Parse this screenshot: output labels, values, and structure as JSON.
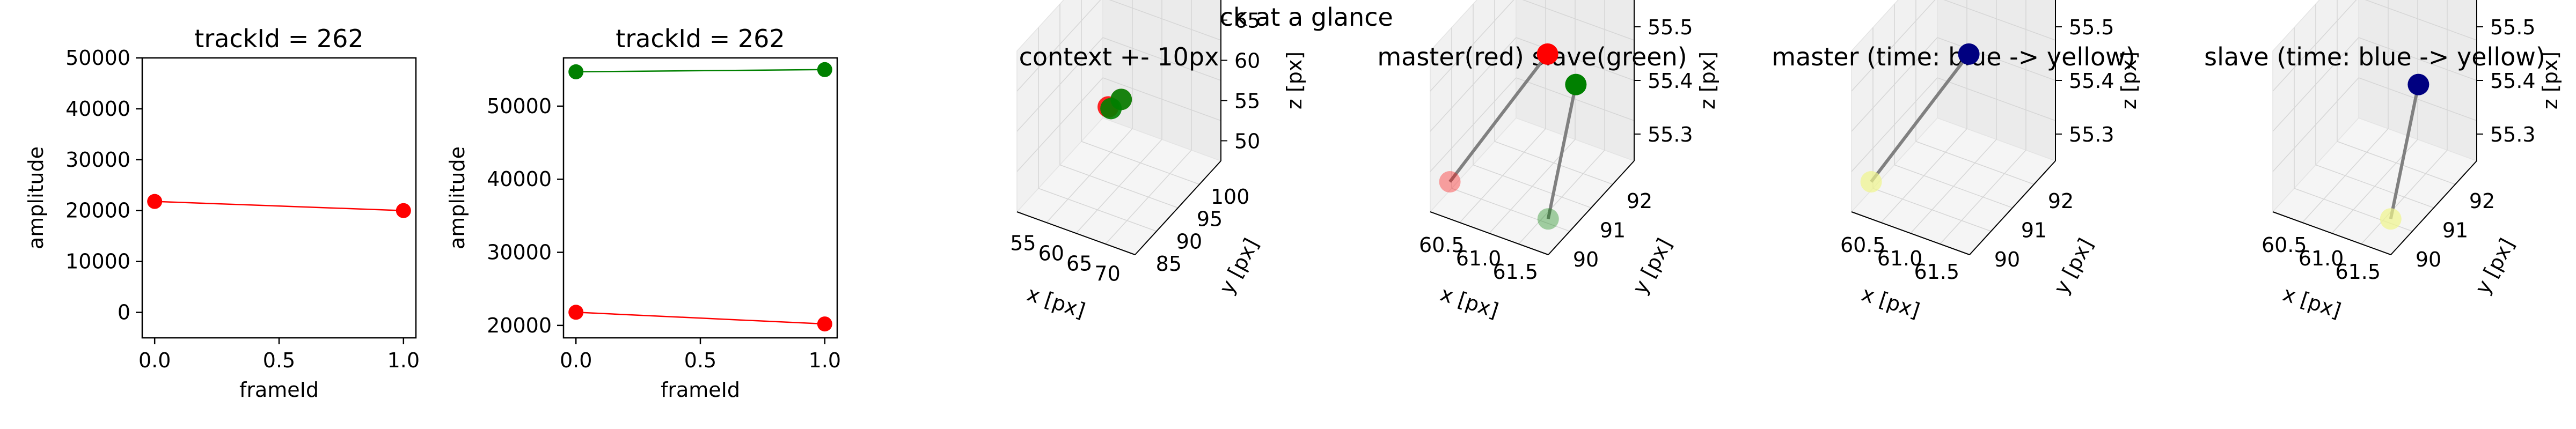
{
  "suptitle": "Track at a glance",
  "colors": {
    "master": "#ff0000",
    "slave": "#008000",
    "connector": "#808080",
    "time_start": "#000080",
    "time_end": "#f0f58c"
  },
  "chart_data": [
    {
      "type": "line",
      "title": "trackId = 262",
      "xlabel": "frameId",
      "ylabel": "amplitude",
      "xlim": [
        -0.05,
        1.05
      ],
      "ylim": [
        -5000,
        50000
      ],
      "xticks": [
        0.0,
        0.5,
        1.0
      ],
      "xtick_labels": [
        "0.0",
        "0.5",
        "1.0"
      ],
      "yticks": [
        0,
        10000,
        20000,
        30000,
        40000,
        50000
      ],
      "ytick_labels": [
        "0",
        "10000",
        "20000",
        "30000",
        "40000",
        "50000"
      ],
      "series": [
        {
          "x": [
            0,
            1
          ],
          "y": [
            21800,
            20000
          ],
          "color": "#ff0000"
        }
      ]
    },
    {
      "type": "line",
      "title": "trackId = 262",
      "xlabel": "frameId",
      "ylabel": "amplitude",
      "xlim": [
        -0.05,
        1.05
      ],
      "ylim": [
        18300,
        56600
      ],
      "xticks": [
        0.0,
        0.5,
        1.0
      ],
      "xtick_labels": [
        "0.0",
        "0.5",
        "1.0"
      ],
      "yticks": [
        20000,
        30000,
        40000,
        50000
      ],
      "ytick_labels": [
        "20000",
        "30000",
        "40000",
        "50000"
      ],
      "series": [
        {
          "x": [
            0,
            1
          ],
          "y": [
            21800,
            20200
          ],
          "color": "#ff0000"
        },
        {
          "x": [
            0,
            1
          ],
          "y": [
            54700,
            55000
          ],
          "color": "#008000"
        }
      ]
    },
    {
      "type": "scatter",
      "title": "context +- 10px",
      "xlabel": "x [px]",
      "ylabel": "y [px]",
      "zlabel": "z [px]",
      "xlim": [
        50.5,
        72
      ],
      "ylim": [
        81,
        104
      ],
      "zlim": [
        42,
        66
      ],
      "xtick_labels": [
        "55",
        "60",
        "65",
        "70"
      ],
      "ytick_labels": [
        "85",
        "90",
        "95",
        "100"
      ],
      "ztick_labels": [
        "50",
        "55",
        "60",
        "65"
      ],
      "points": [
        {
          "x": 60.5,
          "y": 92,
          "z": 55.5,
          "color": "#ff0000",
          "alpha": 0.35
        },
        {
          "x": 61.5,
          "y": 90,
          "z": 55.3,
          "color": "#ff0000",
          "alpha": 0.85
        },
        {
          "x": 60.5,
          "y": 92,
          "z": 55.5,
          "color": "#008000",
          "alpha": 0.9
        },
        {
          "x": 61.0,
          "y": 90,
          "z": 55.2,
          "color": "#008000",
          "alpha": 0.9
        }
      ]
    },
    {
      "type": "scatter",
      "title": "master(red) slave(green)",
      "xlabel": "x [px]",
      "ylabel": "y [px]",
      "zlabel": "z [px]",
      "xlim": [
        60.4,
        61.8
      ],
      "ylim": [
        89.7,
        92.8
      ],
      "zlim": [
        55.18,
        55.52
      ],
      "xtick_labels": [
        "60.5",
        "61.0",
        "61.5"
      ],
      "ytick_labels": [
        "90",
        "91",
        "92"
      ],
      "ztick_labels": [
        "55.3",
        "55.4",
        "55.5"
      ],
      "segments": [
        {
          "from": [
            61.0,
            91.5,
            55.45
          ],
          "to": [
            61.6,
            89.8,
            55.25
          ],
          "color": "#808080"
        },
        {
          "from": [
            60.5,
            91.0,
            55.45
          ],
          "to": [
            60.5,
            90.0,
            55.23
          ],
          "color": "#808080"
        }
      ],
      "points": [
        {
          "x": 61.0,
          "y": 91.5,
          "z": 55.45,
          "color": "#ff0000",
          "alpha": 1.0
        },
        {
          "x": 61.6,
          "y": 89.8,
          "z": 55.25,
          "color": "#ff0000",
          "alpha": 0.35
        },
        {
          "x": 60.5,
          "y": 91.0,
          "z": 55.45,
          "color": "#008000",
          "alpha": 1.0
        },
        {
          "x": 60.5,
          "y": 90.0,
          "z": 55.23,
          "color": "#008000",
          "alpha": 0.35
        }
      ]
    },
    {
      "type": "scatter",
      "title": "master (time: blue -> yellow)",
      "xlabel": "x [px]",
      "ylabel": "y [px]",
      "zlabel": "z [px]",
      "xlim": [
        60.4,
        61.8
      ],
      "ylim": [
        89.7,
        92.8
      ],
      "zlim": [
        55.18,
        55.52
      ],
      "xtick_labels": [
        "60.5",
        "61.0",
        "61.5"
      ],
      "ytick_labels": [
        "90",
        "91",
        "92"
      ],
      "ztick_labels": [
        "55.3",
        "55.4",
        "55.5"
      ],
      "segments": [
        {
          "from": [
            61.0,
            91.5,
            55.45
          ],
          "to": [
            61.6,
            89.8,
            55.25
          ],
          "color": "#808080"
        }
      ],
      "points": [
        {
          "x": 61.0,
          "y": 91.5,
          "z": 55.45,
          "color": "#000080",
          "alpha": 1.0
        },
        {
          "x": 61.6,
          "y": 89.8,
          "z": 55.25,
          "color": "#f0f58c",
          "alpha": 0.7
        }
      ]
    },
    {
      "type": "scatter",
      "title": "slave (time: blue -> yellow)",
      "xlabel": "x [px]",
      "ylabel": "y [px]",
      "zlabel": "z [px]",
      "xlim": [
        60.4,
        61.8
      ],
      "ylim": [
        89.7,
        92.8
      ],
      "zlim": [
        55.18,
        55.52
      ],
      "xtick_labels": [
        "60.5",
        "61.0",
        "61.5"
      ],
      "ytick_labels": [
        "90",
        "91",
        "92"
      ],
      "ztick_labels": [
        "55.3",
        "55.4",
        "55.5"
      ],
      "segments": [
        {
          "from": [
            60.5,
            91.0,
            55.45
          ],
          "to": [
            60.5,
            90.0,
            55.23
          ],
          "color": "#808080"
        }
      ],
      "points": [
        {
          "x": 60.5,
          "y": 91.0,
          "z": 55.45,
          "color": "#000080",
          "alpha": 1.0
        },
        {
          "x": 60.5,
          "y": 90.0,
          "z": 55.23,
          "color": "#f0f58c",
          "alpha": 0.7
        }
      ]
    }
  ]
}
